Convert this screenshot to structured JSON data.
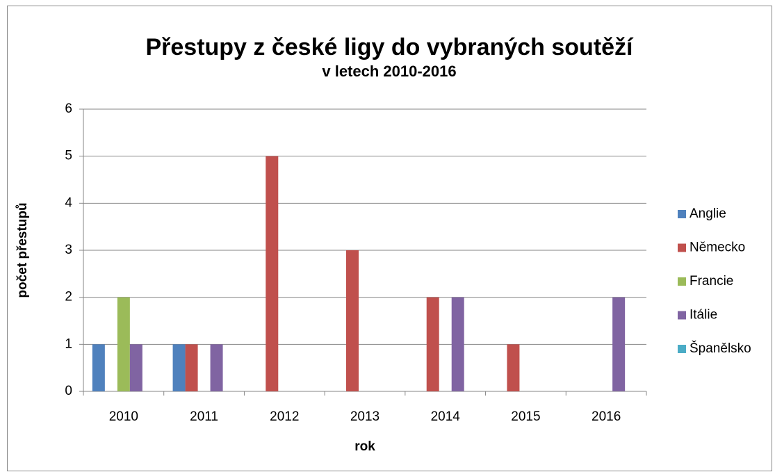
{
  "chart_data": {
    "type": "bar",
    "title": "Přestupy z české ligy do vybraných soutěží",
    "subtitle": "v letech 2010-2016",
    "x_label": "rok",
    "y_label": "počet přestupů",
    "categories": [
      "2010",
      "2011",
      "2012",
      "2013",
      "2014",
      "2015",
      "2016"
    ],
    "series": [
      {
        "name": "Anglie",
        "color": "#4f81bd",
        "values": [
          1,
          1,
          0,
          0,
          0,
          0,
          0
        ]
      },
      {
        "name": "Německo",
        "color": "#c0504d",
        "values": [
          0,
          1,
          5,
          3,
          2,
          1,
          0
        ]
      },
      {
        "name": "Francie",
        "color": "#9bbb59",
        "values": [
          2,
          0,
          0,
          0,
          0,
          0,
          0
        ]
      },
      {
        "name": "Itálie",
        "color": "#8064a2",
        "values": [
          1,
          1,
          0,
          0,
          2,
          0,
          2
        ]
      },
      {
        "name": "Španělsko",
        "color": "#4bacc6",
        "values": [
          0,
          0,
          0,
          0,
          0,
          0,
          0
        ]
      }
    ],
    "ylim": [
      0,
      6
    ],
    "yticks": [
      0,
      1,
      2,
      3,
      4,
      5,
      6
    ],
    "grid": true,
    "legend": "right"
  }
}
